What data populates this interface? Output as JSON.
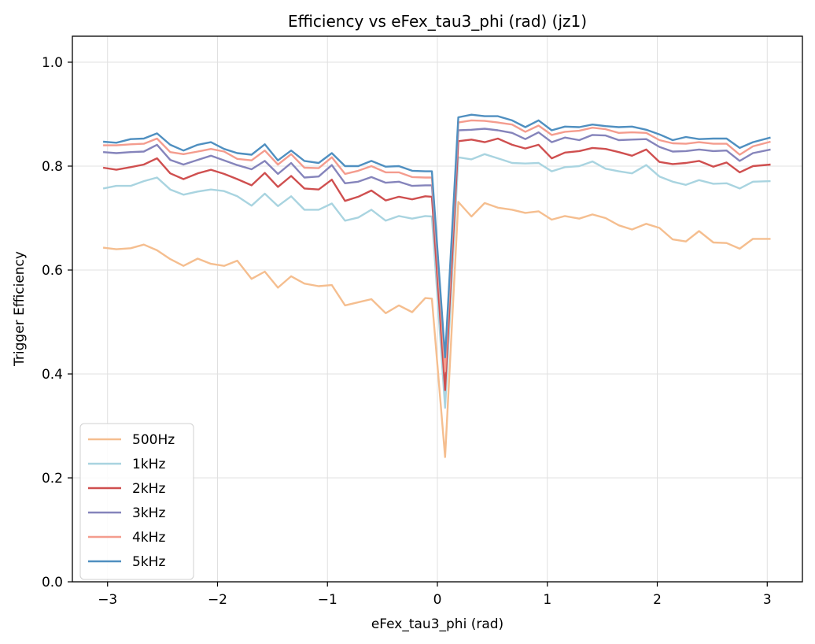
{
  "chart_data": {
    "type": "line",
    "title": "Efficiency vs eFex_tau3_phi (rad) (jz1)",
    "xlabel": "eFex_tau3_phi (rad)",
    "ylabel": "Trigger Efficiency",
    "xlim": [
      -3.32,
      3.32
    ],
    "ylim": [
      0.0,
      1.05
    ],
    "xticks": [
      -3,
      -2,
      -1,
      0,
      1,
      2,
      3
    ],
    "xtick_labels": [
      "−3",
      "−2",
      "−1",
      "0",
      "1",
      "2",
      "3"
    ],
    "yticks": [
      0.0,
      0.2,
      0.4,
      0.6,
      0.8,
      1.0
    ],
    "ytick_labels": [
      "0.0",
      "0.2",
      "0.4",
      "0.6",
      "0.8",
      "1.0"
    ],
    "grid": true,
    "legend_position": "lower-left",
    "x": [
      -3.04,
      -2.92,
      -2.79,
      -2.67,
      -2.55,
      -2.43,
      -2.31,
      -2.18,
      -2.06,
      -1.94,
      -1.82,
      -1.69,
      -1.57,
      -1.45,
      -1.33,
      -1.21,
      -1.08,
      -0.96,
      -0.84,
      -0.72,
      -0.6,
      -0.47,
      -0.35,
      -0.23,
      -0.11,
      -0.05,
      0.07,
      0.19,
      0.31,
      0.43,
      0.55,
      0.68,
      0.8,
      0.92,
      1.04,
      1.16,
      1.29,
      1.41,
      1.53,
      1.65,
      1.77,
      1.9,
      2.02,
      2.14,
      2.26,
      2.38,
      2.51,
      2.63,
      2.75,
      2.87,
      3.03
    ],
    "series": [
      {
        "name": "500Hz",
        "color": "#f5be8f",
        "values": [
          0.643,
          0.64,
          0.642,
          0.649,
          0.638,
          0.621,
          0.608,
          0.622,
          0.612,
          0.608,
          0.618,
          0.583,
          0.597,
          0.566,
          0.588,
          0.574,
          0.569,
          0.571,
          0.532,
          0.538,
          0.544,
          0.517,
          0.532,
          0.519,
          0.546,
          0.545,
          0.24,
          0.731,
          0.703,
          0.729,
          0.72,
          0.716,
          0.71,
          0.713,
          0.697,
          0.704,
          0.699,
          0.707,
          0.7,
          0.686,
          0.678,
          0.689,
          0.681,
          0.659,
          0.655,
          0.675,
          0.653,
          0.652,
          0.641,
          0.66,
          0.66
        ]
      },
      {
        "name": "1kHz",
        "color": "#a9d4e0",
        "values": [
          0.757,
          0.762,
          0.762,
          0.771,
          0.778,
          0.755,
          0.745,
          0.751,
          0.755,
          0.752,
          0.742,
          0.724,
          0.747,
          0.723,
          0.742,
          0.716,
          0.716,
          0.728,
          0.695,
          0.701,
          0.716,
          0.695,
          0.704,
          0.699,
          0.704,
          0.703,
          0.335,
          0.817,
          0.813,
          0.823,
          0.815,
          0.806,
          0.805,
          0.806,
          0.79,
          0.798,
          0.8,
          0.809,
          0.795,
          0.79,
          0.786,
          0.802,
          0.78,
          0.77,
          0.764,
          0.773,
          0.766,
          0.767,
          0.757,
          0.77,
          0.771
        ]
      },
      {
        "name": "2kHz",
        "color": "#cf4f4f",
        "values": [
          0.797,
          0.793,
          0.798,
          0.803,
          0.815,
          0.786,
          0.775,
          0.786,
          0.793,
          0.785,
          0.775,
          0.763,
          0.787,
          0.76,
          0.781,
          0.757,
          0.755,
          0.774,
          0.733,
          0.741,
          0.753,
          0.734,
          0.741,
          0.736,
          0.742,
          0.741,
          0.369,
          0.848,
          0.851,
          0.846,
          0.853,
          0.841,
          0.834,
          0.841,
          0.815,
          0.826,
          0.829,
          0.835,
          0.833,
          0.827,
          0.82,
          0.832,
          0.808,
          0.804,
          0.806,
          0.81,
          0.799,
          0.807,
          0.788,
          0.8,
          0.803
        ]
      },
      {
        "name": "3kHz",
        "color": "#8584bb",
        "values": [
          0.827,
          0.825,
          0.827,
          0.828,
          0.841,
          0.812,
          0.803,
          0.812,
          0.82,
          0.811,
          0.802,
          0.794,
          0.81,
          0.785,
          0.806,
          0.778,
          0.78,
          0.802,
          0.767,
          0.77,
          0.779,
          0.768,
          0.77,
          0.762,
          0.763,
          0.763,
          0.417,
          0.869,
          0.87,
          0.872,
          0.869,
          0.864,
          0.852,
          0.865,
          0.846,
          0.855,
          0.85,
          0.86,
          0.859,
          0.85,
          0.851,
          0.852,
          0.837,
          0.828,
          0.829,
          0.832,
          0.829,
          0.83,
          0.81,
          0.825,
          0.832
        ]
      },
      {
        "name": "4kHz",
        "color": "#f49c8e",
        "values": [
          0.84,
          0.84,
          0.842,
          0.843,
          0.853,
          0.827,
          0.823,
          0.828,
          0.833,
          0.828,
          0.814,
          0.811,
          0.83,
          0.803,
          0.823,
          0.797,
          0.796,
          0.817,
          0.785,
          0.791,
          0.8,
          0.788,
          0.788,
          0.779,
          0.778,
          0.778,
          0.405,
          0.884,
          0.888,
          0.887,
          0.884,
          0.88,
          0.866,
          0.878,
          0.86,
          0.866,
          0.868,
          0.874,
          0.871,
          0.864,
          0.865,
          0.864,
          0.85,
          0.844,
          0.843,
          0.846,
          0.843,
          0.843,
          0.822,
          0.838,
          0.847
        ]
      },
      {
        "name": "5kHz",
        "color": "#4f8fc0",
        "values": [
          0.847,
          0.845,
          0.852,
          0.853,
          0.863,
          0.841,
          0.83,
          0.841,
          0.846,
          0.833,
          0.825,
          0.822,
          0.842,
          0.811,
          0.83,
          0.81,
          0.806,
          0.825,
          0.8,
          0.8,
          0.81,
          0.799,
          0.8,
          0.791,
          0.79,
          0.79,
          0.432,
          0.894,
          0.899,
          0.896,
          0.896,
          0.888,
          0.875,
          0.888,
          0.869,
          0.876,
          0.875,
          0.88,
          0.877,
          0.875,
          0.876,
          0.87,
          0.861,
          0.85,
          0.856,
          0.852,
          0.853,
          0.853,
          0.835,
          0.846,
          0.855
        ]
      }
    ]
  }
}
